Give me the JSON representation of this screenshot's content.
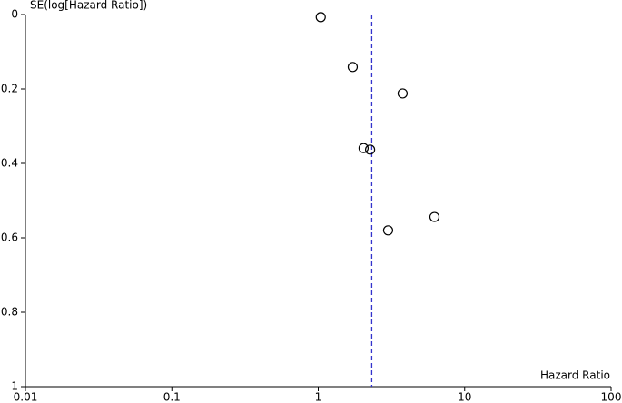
{
  "chart_data": {
    "type": "scatter",
    "ylabel": "SE(log[Hazard Ratio])",
    "xlabel": "Hazard Ratio",
    "x": [
      1.04,
      1.72,
      3.77,
      2.04,
      2.26,
      6.22,
      3.0
    ],
    "values": [
      0.007,
      0.141,
      0.212,
      0.359,
      0.363,
      0.544,
      0.58
    ],
    "xscale": "log",
    "yinverted": true,
    "xlim": [
      0.01,
      100
    ],
    "xticks": [
      0.01,
      0.1,
      1,
      10,
      100
    ],
    "ylim": [
      0,
      1
    ],
    "yticks": [
      0,
      0.2,
      0.4,
      0.6,
      0.8,
      1
    ],
    "reference_x": 2.32,
    "color": "#000000",
    "reference_color": "#3333cc"
  }
}
